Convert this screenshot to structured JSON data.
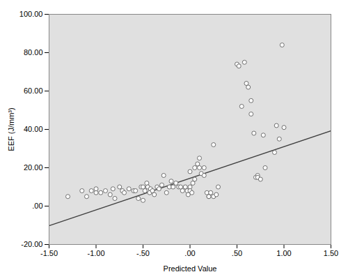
{
  "chart_data": {
    "type": "scatter",
    "xlabel": "Predicted Value",
    "ylabel": "EEF (J/mm³)",
    "series": [
      {
        "type": "scatter",
        "color": "#606060",
        "marker": "circle",
        "x": [
          -1.3,
          -1.15,
          -1.1,
          -1.05,
          -1.0,
          -1.0,
          -0.95,
          -0.9,
          -0.85,
          -0.82,
          -0.8,
          -0.75,
          -0.72,
          -0.7,
          -0.65,
          -0.6,
          -0.58,
          -0.55,
          -0.52,
          -0.5,
          -0.5,
          -0.48,
          -0.46,
          -0.45,
          -0.43,
          -0.42,
          -0.4,
          -0.38,
          -0.35,
          -0.33,
          -0.3,
          -0.28,
          -0.25,
          -0.22,
          -0.2,
          -0.18,
          -0.15,
          -0.12,
          -0.1,
          -0.08,
          -0.05,
          -0.03,
          -0.02,
          0.0,
          0.0,
          0.0,
          0.02,
          0.03,
          0.05,
          0.05,
          0.08,
          0.1,
          0.1,
          0.12,
          0.15,
          0.15,
          0.18,
          0.2,
          0.2,
          0.22,
          0.25,
          0.25,
          0.28,
          0.3,
          0.5,
          0.52,
          0.55,
          0.58,
          0.6,
          0.62,
          0.65,
          0.65,
          0.68,
          0.7,
          0.72,
          0.72,
          0.75,
          0.78,
          0.8,
          0.9,
          0.92,
          0.95,
          0.98,
          1.0
        ],
        "values": [
          5.0,
          8.0,
          5.0,
          8.0,
          7.0,
          9.0,
          7.0,
          8.0,
          6.0,
          9.0,
          4.0,
          10.0,
          8.0,
          7.0,
          9.0,
          8.0,
          8.0,
          4.0,
          10.0,
          3.0,
          10.0,
          8.0,
          12.0,
          10.0,
          7.0,
          9.0,
          8.0,
          6.0,
          10.0,
          9.0,
          11.0,
          16.0,
          7.0,
          10.0,
          13.0,
          10.0,
          12.0,
          10.0,
          10.0,
          8.0,
          10.0,
          8.0,
          6.0,
          10.0,
          8.0,
          18.0,
          7.0,
          12.0,
          20.0,
          14.0,
          22.0,
          25.0,
          20.0,
          17.0,
          16.0,
          20.0,
          7.0,
          5.0,
          5.0,
          7.0,
          32.0,
          5.0,
          6.0,
          10.0,
          74.0,
          73.0,
          52.0,
          75.0,
          64.0,
          62.0,
          55.0,
          48.0,
          38.0,
          15.0,
          16.0,
          15.0,
          14.0,
          37.0,
          20.0,
          28.0,
          42.0,
          35.0,
          84.0,
          41.0
        ]
      },
      {
        "type": "line",
        "color": "#404040",
        "x": [
          -1.5,
          1.5
        ],
        "values": [
          -10.25,
          39.25
        ]
      }
    ],
    "xlim": [
      -1.5,
      1.5
    ],
    "ylim": [
      -20,
      100
    ],
    "xticks": [
      {
        "value": -1.5,
        "label": "-1.50"
      },
      {
        "value": -1.0,
        "label": "-1.00"
      },
      {
        "value": -0.5,
        "label": "-.50"
      },
      {
        "value": 0,
        "label": ".00"
      },
      {
        "value": 0.5,
        "label": ".50"
      },
      {
        "value": 1.0,
        "label": "1.00"
      },
      {
        "value": 1.5,
        "label": "1.50"
      }
    ],
    "yticks": [
      {
        "value": -20,
        "label": "-20.00"
      },
      {
        "value": 0,
        "label": ".00"
      },
      {
        "value": 20,
        "label": "20.00"
      },
      {
        "value": 40,
        "label": "40.00"
      },
      {
        "value": 60,
        "label": "60.00"
      },
      {
        "value": 80,
        "label": "80.00"
      },
      {
        "value": 100,
        "label": "100.00"
      }
    ],
    "grid": false
  }
}
